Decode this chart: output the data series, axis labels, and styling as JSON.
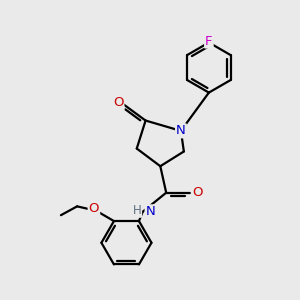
{
  "background_color": "#eaeaea",
  "atom_colors": {
    "C": "#000000",
    "N": "#0000cc",
    "O": "#cc0000",
    "F": "#cc00cc",
    "H": "#404040"
  },
  "bond_color": "#000000",
  "bond_width": 1.6,
  "figsize": [
    3.0,
    3.0
  ],
  "dpi": 100,
  "xlim": [
    0,
    10
  ],
  "ylim": [
    0,
    10
  ]
}
